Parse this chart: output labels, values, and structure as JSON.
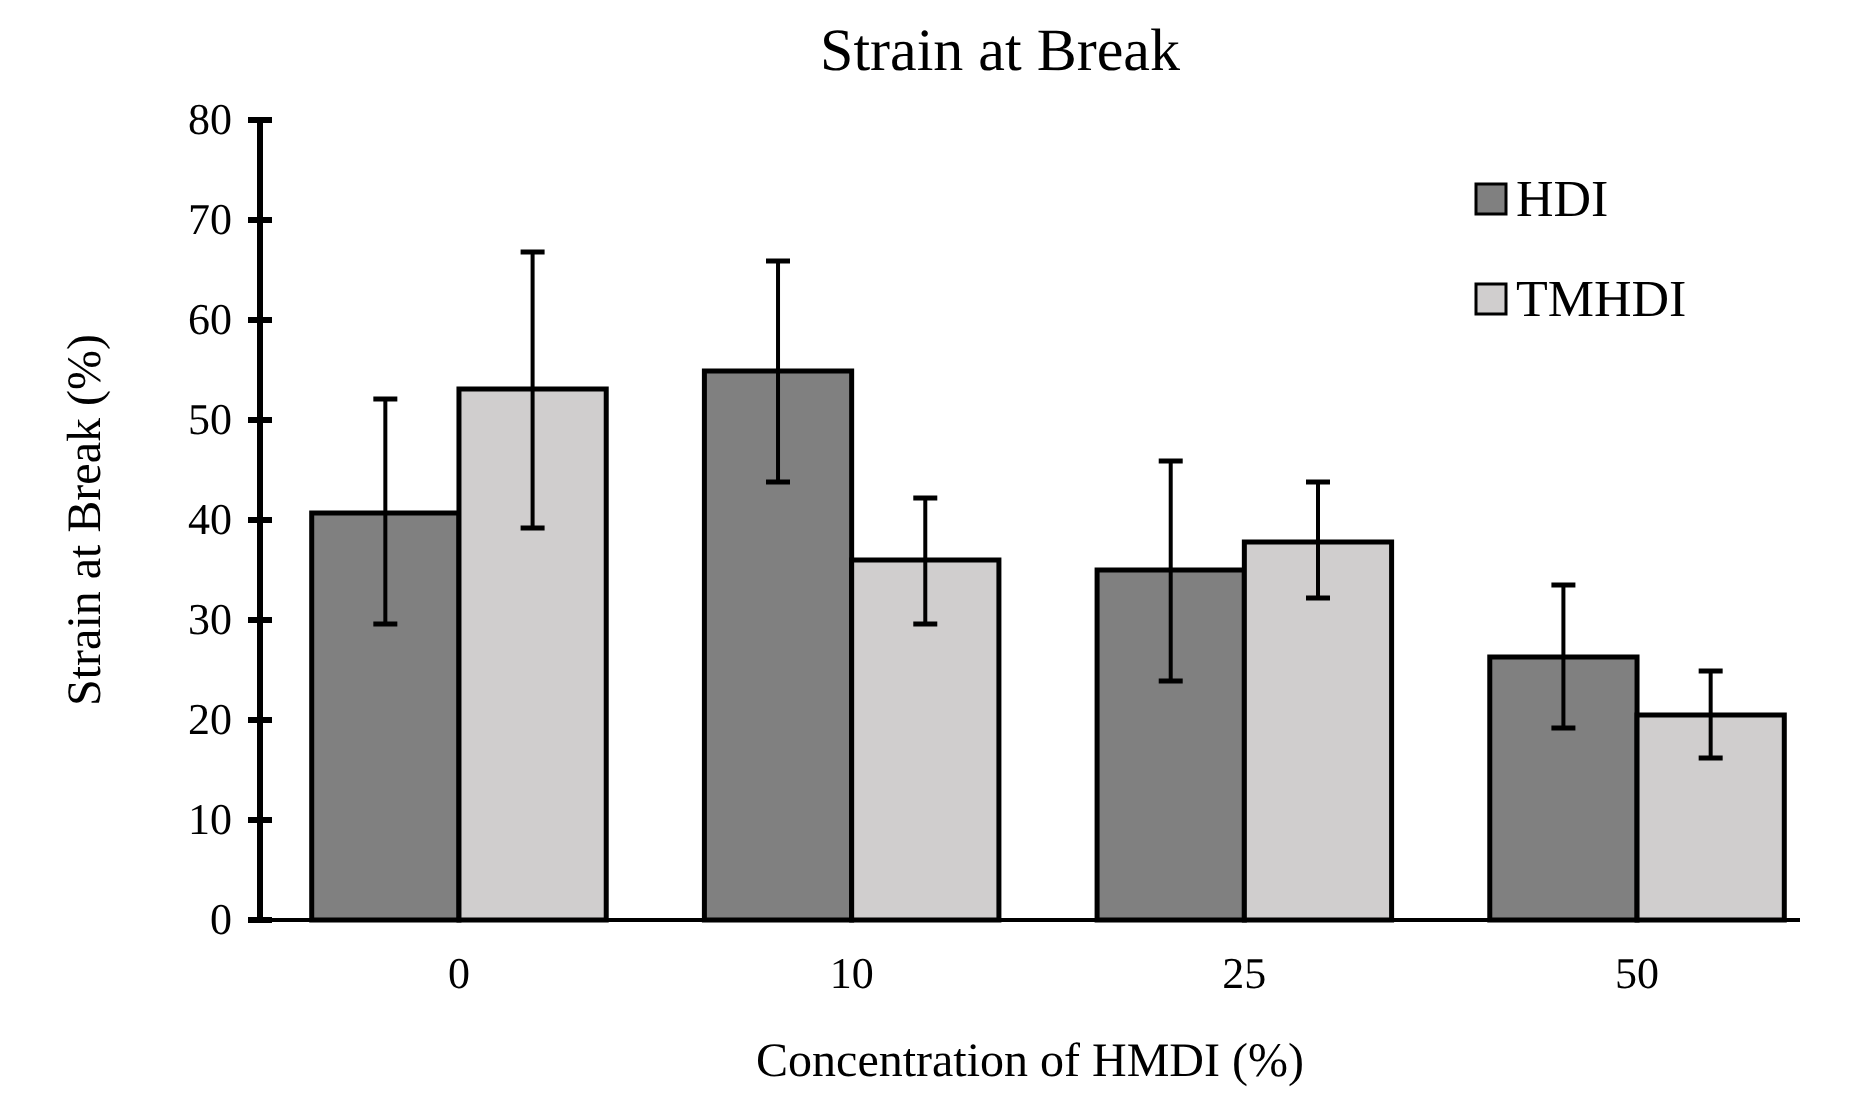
{
  "chart_data": {
    "type": "bar",
    "title": "Strain at Break",
    "xlabel": "Concentration of HMDI (%)",
    "ylabel": "Strain at Break (%)",
    "categories": [
      "0",
      "10",
      "25",
      "50"
    ],
    "series": [
      {
        "name": "HDI",
        "color": "#808080",
        "values": [
          40.7,
          54.9,
          35,
          26.3
        ],
        "errors": [
          [
            29.6,
            52.1
          ],
          [
            43.8,
            65.9
          ],
          [
            23.9,
            45.9
          ],
          [
            19.2,
            33.5
          ]
        ]
      },
      {
        "name": "TMHDI",
        "color": "#d0cece",
        "values": [
          53.1,
          36,
          37.8,
          20.5
        ],
        "errors": [
          [
            39.2,
            66.8
          ],
          [
            29.6,
            42.2
          ],
          [
            32.2,
            43.8
          ],
          [
            16.2,
            24.9
          ]
        ]
      }
    ],
    "ylim": [
      0,
      80
    ],
    "yticks": [
      0,
      10,
      20,
      30,
      40,
      50,
      60,
      70,
      80
    ],
    "grid": false,
    "legend": "top right"
  }
}
